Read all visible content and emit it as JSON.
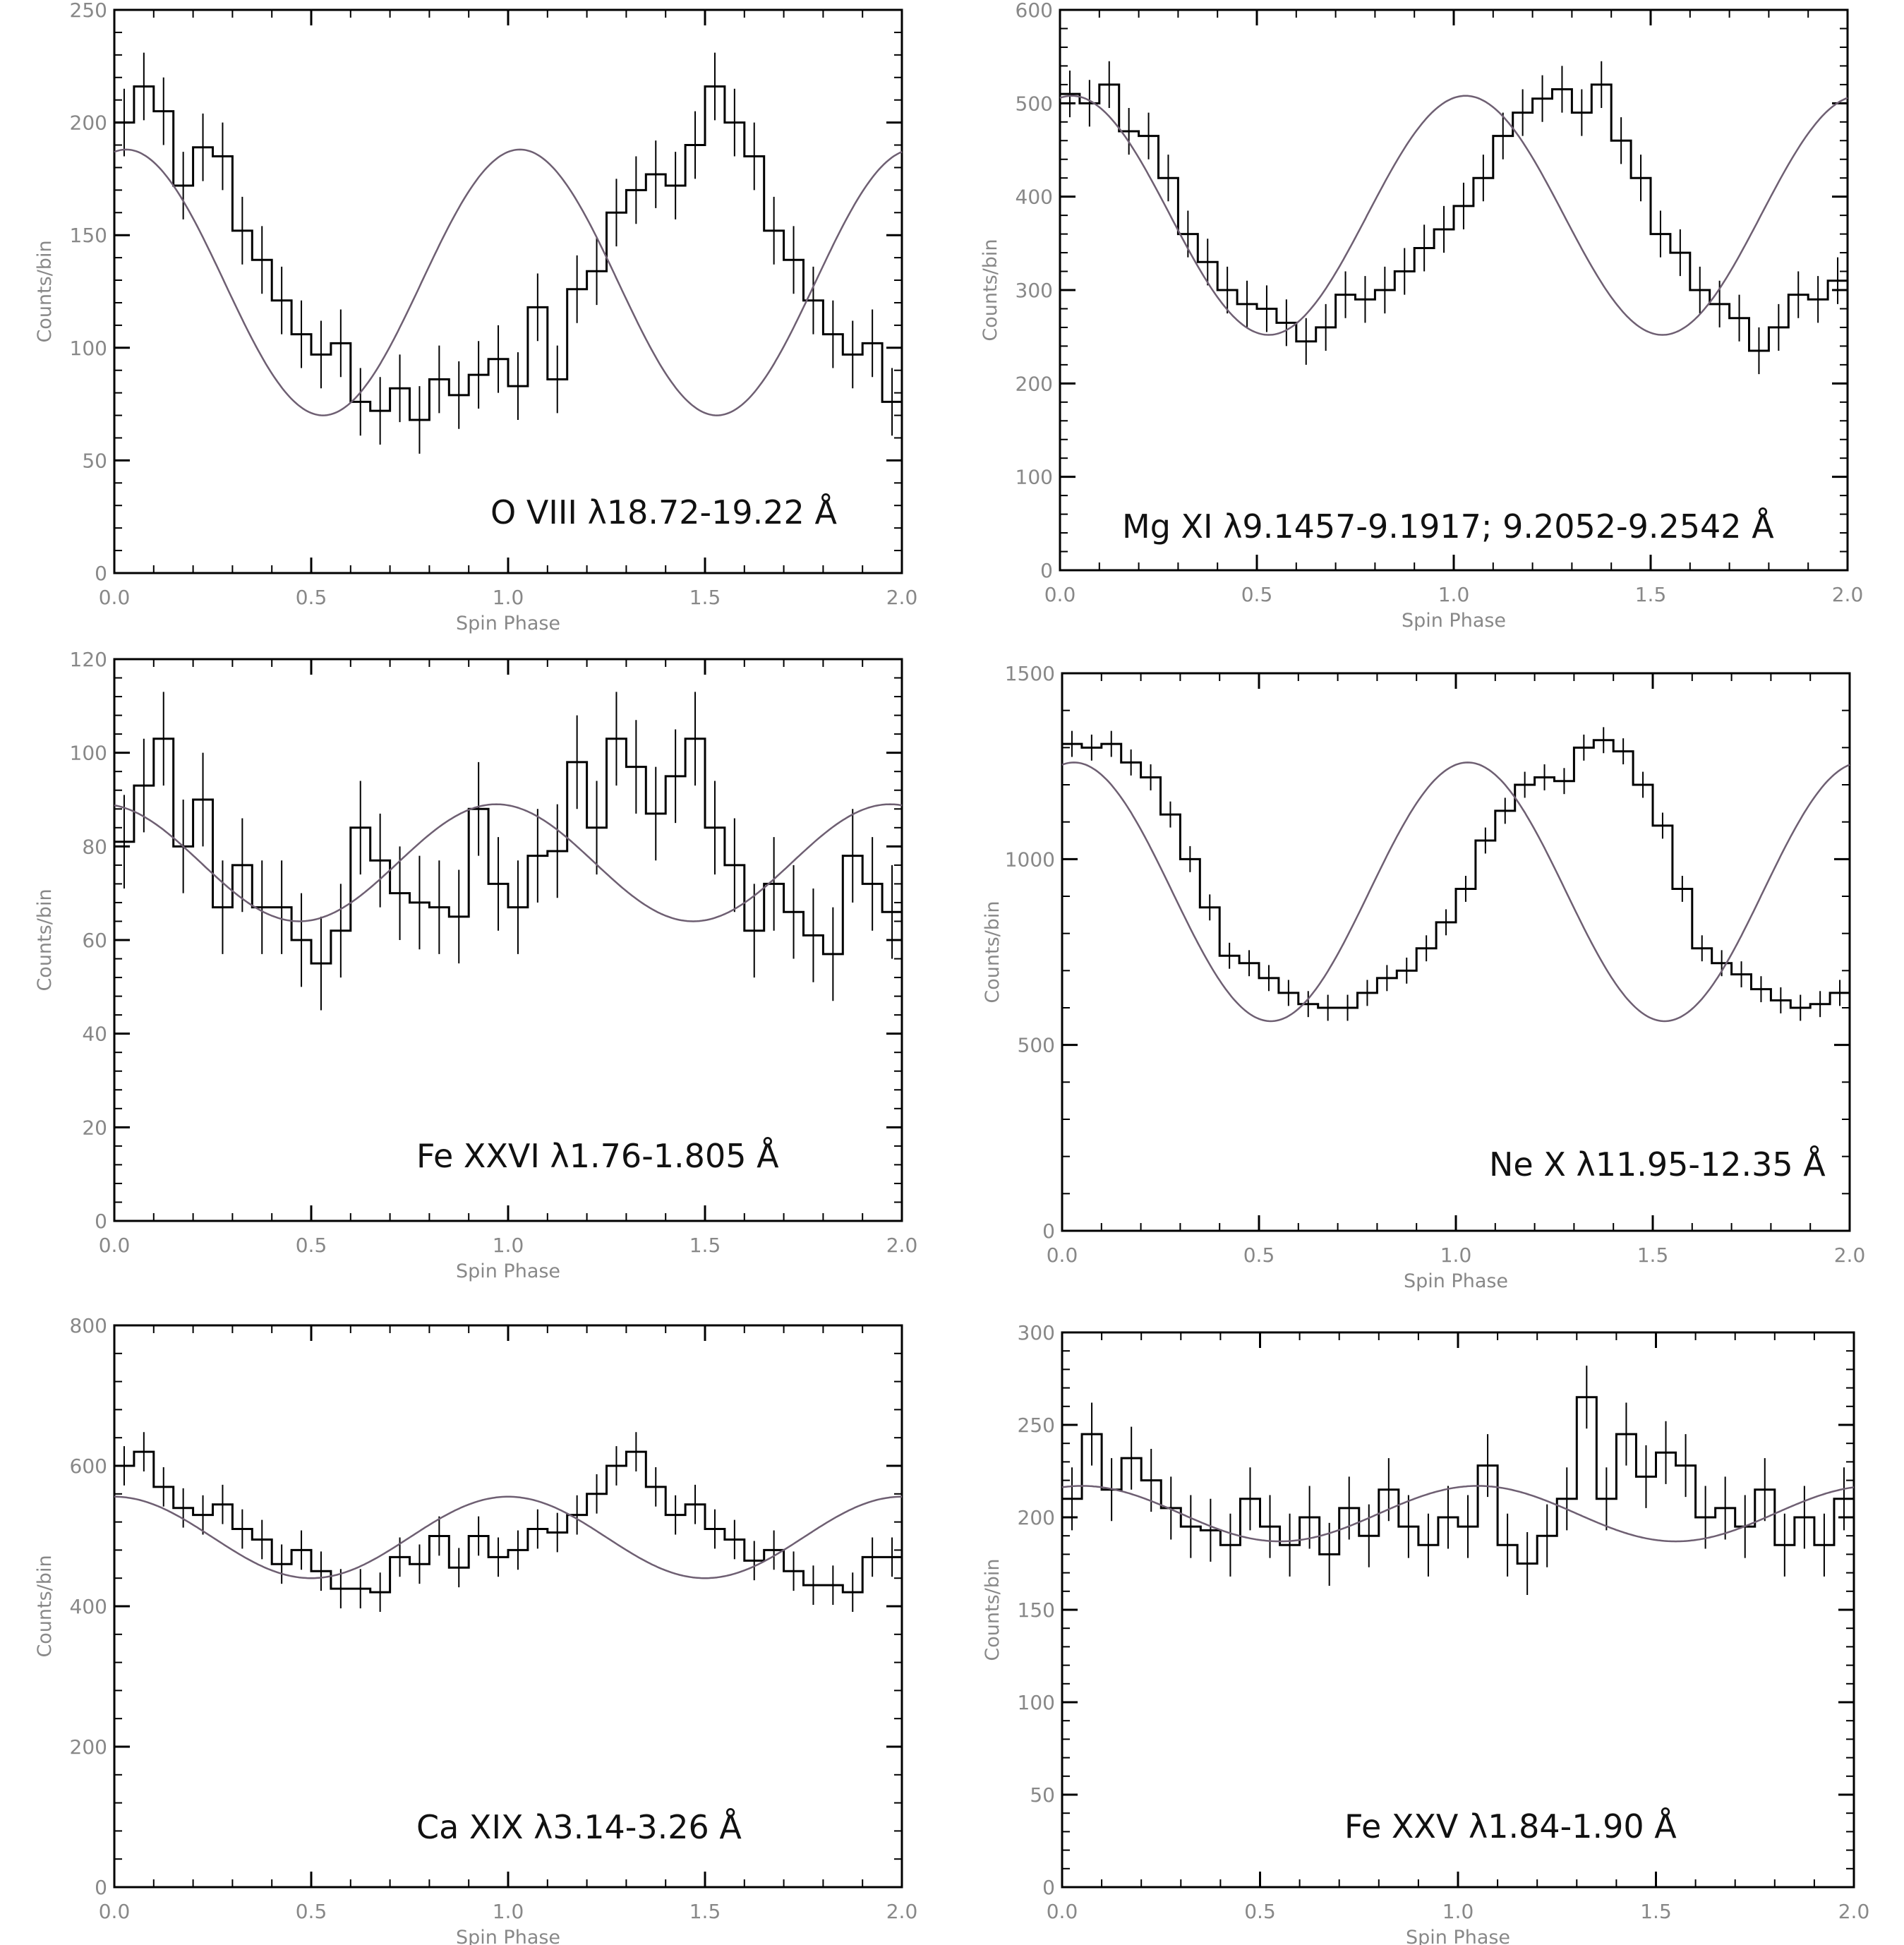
{
  "chart_data": [
    {
      "type": "step-line",
      "xlabel": "Spin Phase",
      "ylabel": "Counts/bin",
      "annotation": "O VIII λ18.72-19.22 Å",
      "xlim": [
        0,
        2
      ],
      "ylim": [
        0,
        250
      ],
      "xticks": [
        "0.0",
        "0.5",
        "1.0",
        "1.5",
        "2.0"
      ],
      "yticks": [
        "0",
        "50",
        "100",
        "150",
        "200",
        "250"
      ],
      "model": {
        "mean": 129,
        "amplitude": 59,
        "peak_phase": 0.03
      },
      "bins": 40,
      "error_bar": 15,
      "values": [
        200,
        216,
        205,
        172,
        189,
        185,
        152,
        139,
        121,
        106,
        97,
        102,
        76,
        72,
        82,
        68,
        86,
        79,
        88,
        95,
        83,
        118,
        86,
        126,
        134,
        160,
        170,
        177,
        172,
        190,
        216,
        200,
        185,
        152,
        139,
        121,
        106,
        97,
        102,
        76
      ]
    },
    {
      "type": "step-line",
      "xlabel": "Spin Phase",
      "ylabel": "Counts/bin",
      "annotation": "Mg XI λ9.1457-9.1917; 9.2052-9.2542 Å",
      "xlim": [
        0,
        2
      ],
      "ylim": [
        0,
        600
      ],
      "xticks": [
        "0.0",
        "0.5",
        "1.0",
        "1.5",
        "2.0"
      ],
      "yticks": [
        "0",
        "100",
        "200",
        "300",
        "400",
        "500",
        "600"
      ],
      "model": {
        "mean": 380,
        "amplitude": 128,
        "peak_phase": 0.03
      },
      "bins": 40,
      "error_bar": 25,
      "values": [
        510,
        500,
        520,
        470,
        465,
        420,
        360,
        330,
        300,
        285,
        280,
        265,
        245,
        260,
        295,
        290,
        300,
        320,
        345,
        365,
        390,
        420,
        465,
        490,
        505,
        515,
        490,
        520,
        460,
        420,
        360,
        340,
        300,
        285,
        270,
        235,
        260,
        295,
        290,
        310
      ]
    },
    {
      "type": "step-line",
      "xlabel": "Spin Phase",
      "ylabel": "Counts/bin",
      "annotation": "Fe XXVI λ1.76-1.805 Å",
      "xlim": [
        0,
        2
      ],
      "ylim": [
        0,
        120
      ],
      "xticks": [
        "0.0",
        "0.5",
        "1.0",
        "1.5",
        "2.0"
      ],
      "yticks": [
        "0",
        "20",
        "40",
        "60",
        "80",
        "100",
        "120"
      ],
      "model": {
        "mean": 76.5,
        "amplitude": 12.5,
        "peak_phase": 0.97
      },
      "bins": 40,
      "error_bar": 10,
      "values": [
        81,
        93,
        103,
        80,
        90,
        67,
        76,
        67,
        67,
        60,
        55,
        62,
        84,
        77,
        70,
        68,
        67,
        65,
        88,
        72,
        67,
        78,
        79,
        98,
        84,
        103,
        97,
        87,
        95,
        103,
        84,
        76,
        62,
        72,
        66,
        61,
        57,
        78,
        72,
        66
      ]
    },
    {
      "type": "step-line",
      "xlabel": "Spin Phase",
      "ylabel": "Counts/bin",
      "annotation": "Ne X λ11.95-12.35 Å",
      "xlim": [
        0,
        2
      ],
      "ylim": [
        0,
        1500
      ],
      "xticks": [
        "0.0",
        "0.5",
        "1.0",
        "1.5",
        "2.0"
      ],
      "yticks": [
        "0",
        "500",
        "1000",
        "1500"
      ],
      "model": {
        "mean": 912,
        "amplitude": 348,
        "peak_phase": 0.03
      },
      "bins": 40,
      "error_bar": 35,
      "values": [
        1310,
        1300,
        1310,
        1260,
        1220,
        1120,
        1000,
        870,
        740,
        720,
        680,
        640,
        610,
        600,
        600,
        640,
        680,
        700,
        760,
        830,
        920,
        1050,
        1130,
        1200,
        1220,
        1210,
        1300,
        1320,
        1290,
        1200,
        1090,
        920,
        760,
        720,
        690,
        650,
        620,
        600,
        610,
        640
      ]
    },
    {
      "type": "step-line",
      "xlabel": "Spin Phase",
      "ylabel": "Counts/bin",
      "annotation": "Ca XIX λ3.14-3.26 Å",
      "xlim": [
        0,
        2
      ],
      "ylim": [
        0,
        800
      ],
      "xticks": [
        "0.0",
        "0.5",
        "1.0",
        "1.5",
        "2.0"
      ],
      "yticks": [
        "0",
        "200",
        "400",
        "600",
        "800"
      ],
      "model": {
        "mean": 498,
        "amplitude": 58,
        "peak_phase": 0.0
      },
      "bins": 40,
      "error_bar": 28,
      "values": [
        600,
        620,
        570,
        540,
        530,
        545,
        510,
        495,
        460,
        480,
        450,
        425,
        425,
        420,
        470,
        460,
        500,
        455,
        500,
        470,
        480,
        510,
        505,
        530,
        560,
        600,
        620,
        570,
        530,
        545,
        510,
        495,
        465,
        480,
        450,
        430,
        430,
        420,
        470,
        470
      ]
    },
    {
      "type": "step-line",
      "xlabel": "Spin Phase",
      "ylabel": "Counts/bin",
      "annotation": "Fe XXV λ1.84-1.90 Å",
      "xlim": [
        0,
        2
      ],
      "ylim": [
        0,
        300
      ],
      "xticks": [
        "0.0",
        "0.5",
        "1.0",
        "1.5",
        "2.0"
      ],
      "yticks": [
        "0",
        "50",
        "100",
        "150",
        "200",
        "250",
        "300"
      ],
      "model": {
        "mean": 202,
        "amplitude": 15,
        "peak_phase": 0.05
      },
      "bins": 40,
      "error_bar": 17,
      "values": [
        210,
        245,
        215,
        232,
        220,
        205,
        195,
        193,
        185,
        210,
        195,
        185,
        200,
        180,
        205,
        190,
        215,
        195,
        185,
        200,
        195,
        228,
        185,
        175,
        190,
        210,
        265,
        210,
        245,
        222,
        235,
        228,
        200,
        205,
        195,
        215,
        185,
        200,
        185,
        210
      ]
    }
  ]
}
